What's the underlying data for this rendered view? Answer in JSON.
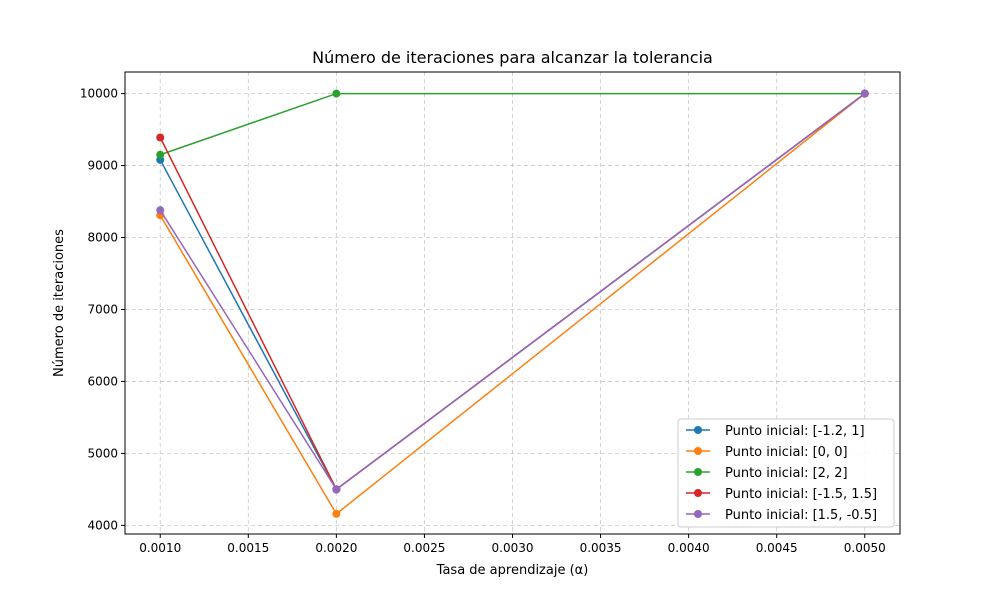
{
  "chart_data": {
    "type": "line",
    "title": "Número de iteraciones para alcanzar la tolerancia",
    "xlabel": "Tasa de aprendizaje (α)",
    "ylabel": "Número de iteraciones",
    "x": [
      0.001,
      0.002,
      0.005
    ],
    "xlim": [
      0.0008,
      0.0052
    ],
    "ylim": [
      3880,
      10300
    ],
    "xticks": [
      0.001,
      0.0015,
      0.002,
      0.0025,
      0.003,
      0.0035,
      0.004,
      0.0045,
      0.005
    ],
    "xtick_labels": [
      "0.0010",
      "0.0015",
      "0.0020",
      "0.0025",
      "0.0030",
      "0.0035",
      "0.0040",
      "0.0045",
      "0.0050"
    ],
    "yticks": [
      4000,
      5000,
      6000,
      7000,
      8000,
      9000,
      10000
    ],
    "ytick_labels": [
      "4000",
      "5000",
      "6000",
      "7000",
      "8000",
      "9000",
      "10000"
    ],
    "grid": true,
    "legend_position": "bottom-right",
    "series": [
      {
        "name": "Punto inicial: [-1.2, 1]",
        "color": "#1f77b4",
        "values": [
          9080,
          4500,
          10000
        ]
      },
      {
        "name": "Punto inicial: [0, 0]",
        "color": "#ff7f0e",
        "values": [
          8310,
          4160,
          10000
        ]
      },
      {
        "name": "Punto inicial: [2, 2]",
        "color": "#2ca02c",
        "values": [
          9150,
          10000,
          10000
        ]
      },
      {
        "name": "Punto inicial: [-1.5, 1.5]",
        "color": "#d62728",
        "values": [
          9390,
          4500,
          10000
        ]
      },
      {
        "name": "Punto inicial: [1.5, -0.5]",
        "color": "#9467bd",
        "values": [
          8380,
          4500,
          10000
        ]
      }
    ]
  }
}
